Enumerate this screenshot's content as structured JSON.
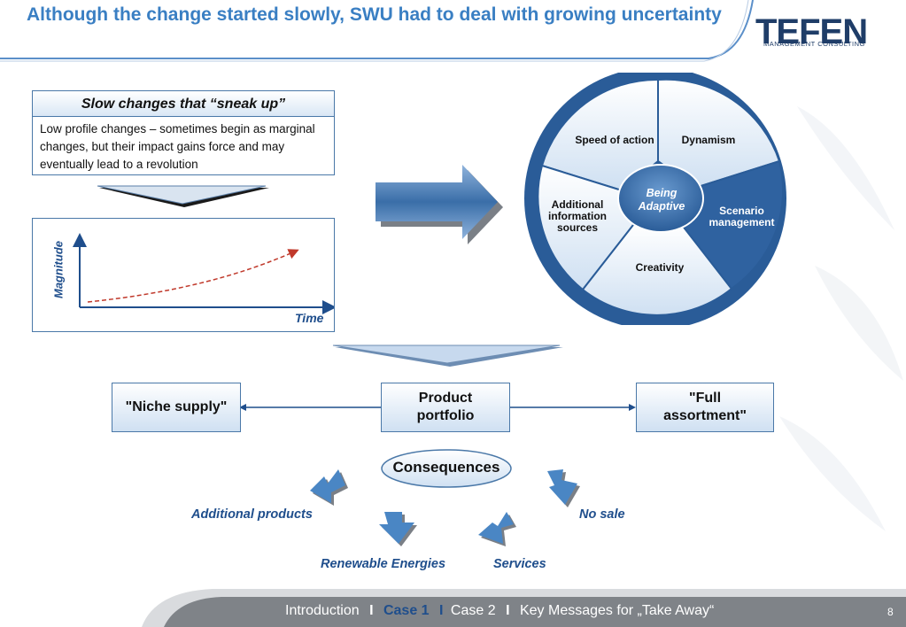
{
  "title": "Although the change started slowly, SWU had to deal with growing uncertainty",
  "logo": {
    "name": "TEFEN",
    "subtitle": "MANAGEMENT CONSULTING"
  },
  "slow_box": {
    "heading": "Slow changes that “sneak up”",
    "text": "Low profile changes – sometimes begin as marginal changes, but their impact gains force and may eventually lead to a revolution"
  },
  "graph": {
    "ylabel": "Magnitude",
    "xlabel": "Time"
  },
  "wheel": {
    "center_line1": "Being",
    "center_line2": "Adaptive",
    "segments": {
      "speed": "Speed of action",
      "dynamism": "Dynamism",
      "scenario_1": "Scenario",
      "scenario_2": "management",
      "creativity": "Creativity",
      "info_1": "Additional",
      "info_2": "information",
      "info_3": "sources"
    }
  },
  "portfolio": {
    "left": "\"Niche supply\"",
    "center_1": "Product",
    "center_2": "portfolio",
    "right_1": "\"Full",
    "right_2": "assortment\""
  },
  "consequences": {
    "label": "Consequences",
    "items": [
      "Additional products",
      "Renewable Energies",
      "Services",
      "No sale"
    ]
  },
  "footer": {
    "intro": "Introduction",
    "sep": "I",
    "case1": "Case 1",
    "case2": "Case 2",
    "key": "Key Messages for „Take Away“",
    "page": "8"
  },
  "colors": {
    "accent": "#3a7fc3",
    "dark_blue": "#1f4e8c",
    "footer_bg": "#7f8388"
  }
}
